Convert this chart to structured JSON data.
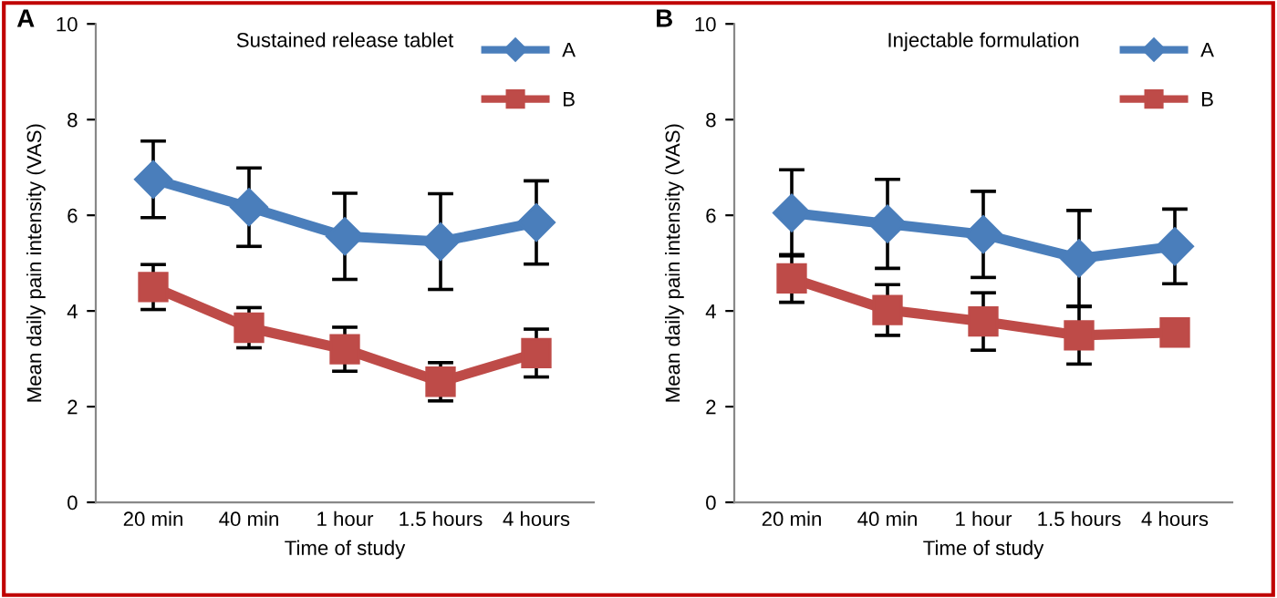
{
  "chart_data": [
    {
      "type": "line",
      "title": "Sustained release tablet",
      "xlabel": "Time of study",
      "ylabel": "Mean daily pain intensity (VAS)",
      "annotations": [
        "A"
      ],
      "categories": [
        "20 min",
        "40 min",
        "1 hour",
        "1.5 hours",
        "4 hours"
      ],
      "series": [
        {
          "name": "A",
          "color": "#4a7ebb",
          "marker": "diamond",
          "values": [
            6.75,
            6.17,
            5.56,
            5.45,
            5.85
          ],
          "errors": [
            0.8,
            0.82,
            0.9,
            1.0,
            0.87
          ]
        },
        {
          "name": "B",
          "color": "#be4b48",
          "marker": "square",
          "values": [
            4.5,
            3.65,
            3.2,
            2.52,
            3.12
          ],
          "errors": [
            0.47,
            0.42,
            0.46,
            0.4,
            0.5
          ]
        }
      ],
      "ylim": [
        0,
        10
      ],
      "yticks": [
        0,
        2,
        4,
        6,
        8,
        10
      ],
      "grid": false,
      "legend": "top right"
    },
    {
      "type": "line",
      "title": "Injectable formulation",
      "xlabel": "Time of study",
      "ylabel": "Mean daily pain intensity (VAS)",
      "annotations": [
        "B"
      ],
      "categories": [
        "20 min",
        "40 min",
        "1 hour",
        "1.5 hours",
        "4 hours"
      ],
      "series": [
        {
          "name": "A",
          "color": "#4a7ebb",
          "marker": "diamond",
          "values": [
            6.05,
            5.82,
            5.6,
            5.1,
            5.35
          ],
          "errors": [
            0.9,
            0.93,
            0.9,
            1.0,
            0.78
          ]
        },
        {
          "name": "B",
          "color": "#be4b48",
          "marker": "square",
          "values": [
            4.68,
            4.02,
            3.78,
            3.49,
            3.55
          ],
          "errors": [
            0.5,
            0.53,
            0.6,
            0.6,
            null
          ]
        }
      ],
      "ylim": [
        0,
        10
      ],
      "yticks": [
        0,
        2,
        4,
        6,
        8,
        10
      ],
      "grid": false,
      "legend": "top right"
    }
  ]
}
